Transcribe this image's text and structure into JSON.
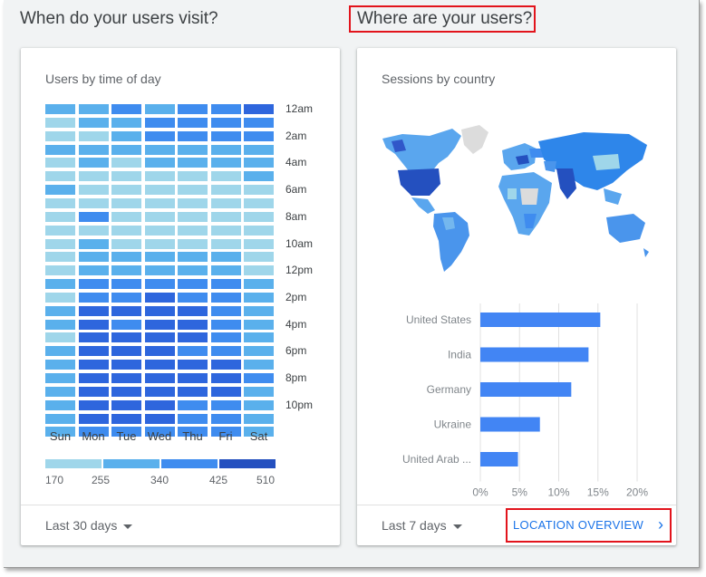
{
  "sections": {
    "left_title": "When do your users visit?",
    "right_title": "Where are your users?"
  },
  "time_card": {
    "title": "Users by time of day",
    "hour_labels": [
      "12am",
      "2am",
      "4am",
      "6am",
      "8am",
      "10am",
      "12pm",
      "2pm",
      "4pm",
      "6pm",
      "8pm",
      "10pm"
    ],
    "days": [
      "Sun",
      "Mon",
      "Tue",
      "Wed",
      "Thu",
      "Fri",
      "Sat"
    ],
    "legend": [
      "170",
      "255",
      "340",
      "425",
      "510"
    ],
    "footer_range": "Last 30 days",
    "colors": [
      "#9fd6ea",
      "#5ab0ec",
      "#3f8cef",
      "#2e66dd",
      "#2450bf"
    ],
    "heat_levels": [
      [
        1,
        1,
        2,
        1,
        2,
        2,
        3
      ],
      [
        0,
        1,
        1,
        2,
        2,
        2,
        2
      ],
      [
        0,
        0,
        1,
        2,
        2,
        2,
        2
      ],
      [
        1,
        1,
        1,
        1,
        1,
        1,
        1
      ],
      [
        0,
        1,
        0,
        1,
        1,
        1,
        1
      ],
      [
        0,
        0,
        0,
        0,
        0,
        0,
        1
      ],
      [
        1,
        0,
        0,
        0,
        0,
        0,
        0
      ],
      [
        0,
        0,
        0,
        0,
        0,
        0,
        0
      ],
      [
        0,
        2,
        0,
        0,
        0,
        0,
        0
      ],
      [
        0,
        0,
        0,
        0,
        0,
        0,
        0
      ],
      [
        0,
        1,
        0,
        0,
        0,
        0,
        0
      ],
      [
        0,
        1,
        1,
        1,
        1,
        1,
        0
      ],
      [
        0,
        1,
        1,
        1,
        1,
        1,
        0
      ],
      [
        1,
        2,
        2,
        2,
        2,
        2,
        1
      ],
      [
        0,
        2,
        2,
        3,
        2,
        2,
        1
      ],
      [
        1,
        3,
        3,
        3,
        3,
        2,
        1
      ],
      [
        1,
        3,
        2,
        3,
        3,
        2,
        1
      ],
      [
        0,
        3,
        3,
        3,
        3,
        2,
        1
      ],
      [
        1,
        3,
        3,
        3,
        2,
        2,
        1
      ],
      [
        1,
        3,
        3,
        3,
        3,
        3,
        1
      ],
      [
        1,
        3,
        3,
        3,
        3,
        3,
        2
      ],
      [
        1,
        3,
        3,
        3,
        3,
        3,
        1
      ],
      [
        1,
        3,
        3,
        3,
        2,
        2,
        1
      ],
      [
        1,
        3,
        3,
        3,
        2,
        2,
        1
      ],
      [
        1,
        2,
        2,
        2,
        2,
        2,
        1
      ]
    ]
  },
  "country_card": {
    "title": "Sessions by country",
    "footer_range": "Last 7 days",
    "overview_link": "LOCATION OVERVIEW",
    "bar_color": "#4285f4"
  },
  "chart_data": {
    "type": "bar",
    "orientation": "horizontal",
    "categories": [
      "United States",
      "India",
      "Germany",
      "Ukraine",
      "United Arab ..."
    ],
    "values": [
      15.3,
      13.8,
      11.6,
      7.6,
      4.8
    ],
    "xticks": [
      "0%",
      "5%",
      "10%",
      "15%",
      "20%"
    ],
    "xlim": [
      0,
      20
    ],
    "grid": true
  }
}
